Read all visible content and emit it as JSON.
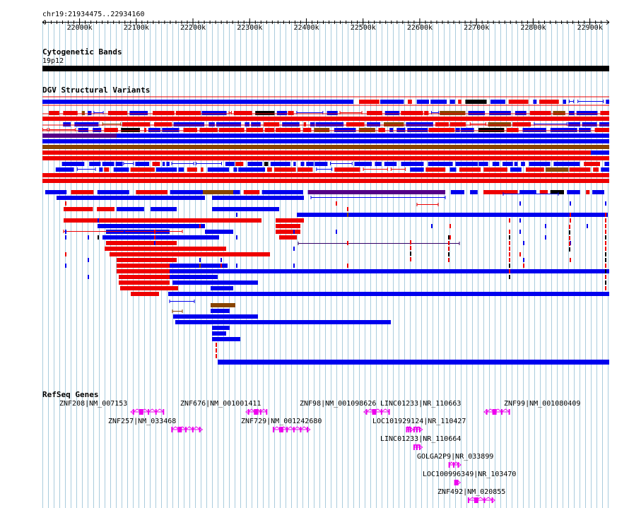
{
  "region": {
    "label": "chr19:21934475..22934160",
    "start": 21934475,
    "end": 22934160
  },
  "ruler": {
    "ticks": [
      "22000k",
      "22100k",
      "22200k",
      "22300k",
      "22400k",
      "22500k",
      "22600k",
      "22700k",
      "22800k",
      "22900k"
    ]
  },
  "tracks": {
    "cytoband": {
      "title": "Cytogenetic Bands",
      "band": "19p12"
    },
    "dgv": {
      "title": "DGV Structural Variants"
    },
    "refseq": {
      "title": "RefSeq Genes"
    }
  },
  "colors": {
    "gain": "#0000ee",
    "loss": "#ee0000",
    "complex": "#550088",
    "inversion": "#884400",
    "gene": "#ee00ee",
    "grid": "#aaccdd",
    "band": "#000000"
  },
  "genes": [
    {
      "label": "ZNF208|NM_007153",
      "start": 22095000,
      "end": 22148000,
      "strand": "-"
    },
    {
      "label": "ZNF257|NM_033468",
      "start": 22163000,
      "end": 22212000,
      "strand": "+"
    },
    {
      "label": "ZNF676|NM_001001411",
      "start": 22298000,
      "end": 22330000,
      "strand": "-"
    },
    {
      "label": "ZNF729|NM_001242680",
      "start": 22342000,
      "end": 22402000,
      "strand": "+"
    },
    {
      "label": "ZNF98|NM_001098626",
      "start": 22506000,
      "end": 22546000,
      "strand": "-"
    },
    {
      "label": "LINC01233|NR_110663",
      "start": 22590000,
      "end": 22600000,
      "strand": "+"
    },
    {
      "label": "LOC101929124|NR_110427",
      "start": 22577000,
      "end": 22584000,
      "strand": "+"
    },
    {
      "label": "LINC01233|NR_110664",
      "start": 22590000,
      "end": 22600000,
      "strand": "+"
    },
    {
      "label": "GOLGA2P9|NR_033899",
      "start": 22652000,
      "end": 22668000,
      "strand": "+"
    },
    {
      "label": "LOC100996349|NR_103470",
      "start": 22662000,
      "end": 22667000,
      "strand": "+"
    },
    {
      "label": "ZNF492|NM_020855",
      "start": 22686000,
      "end": 22728000,
      "strand": "+"
    },
    {
      "label": "ZNF99|NM_001080409",
      "start": 22718000,
      "end": 22758000,
      "strand": "-"
    }
  ]
}
